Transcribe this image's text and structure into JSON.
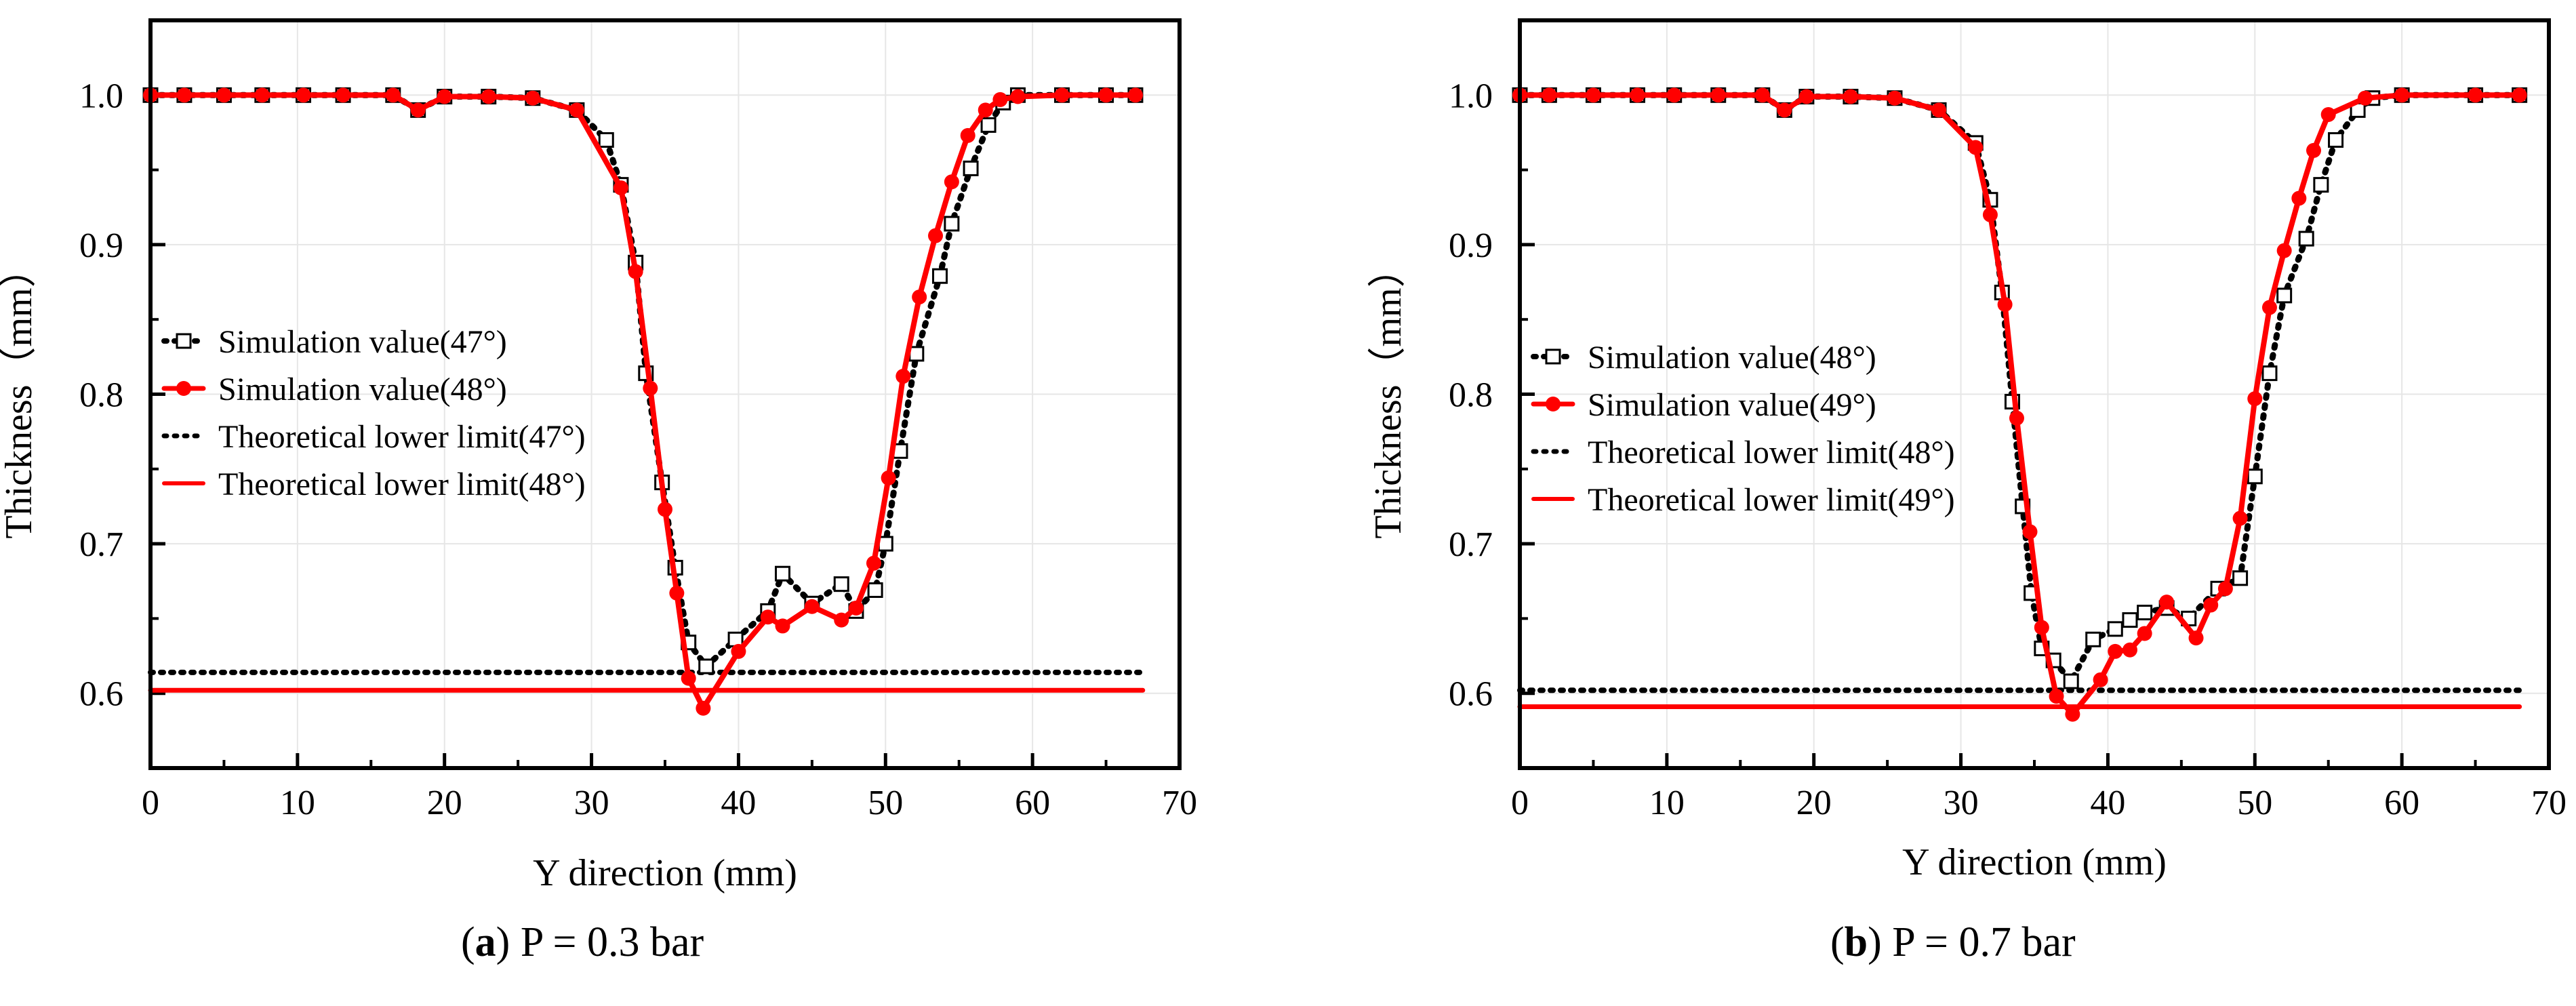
{
  "captions": [
    {
      "letter": "a",
      "paren_open": "(",
      "paren_close": ")",
      "text": " P = 0.3 bar"
    },
    {
      "letter": "b",
      "paren_open": "(",
      "paren_close": ")",
      "text": " P = 0.7 bar"
    }
  ],
  "colors": {
    "sim_black": "#000000",
    "sim_red": "#ff0000",
    "axis": "#000000",
    "grid": "#e6e6e6"
  },
  "chart_data": [
    {
      "type": "line",
      "panel": "a",
      "xlabel": "Y direction (mm)",
      "ylabel": "Thickness（mm）",
      "xlim": [
        0,
        70
      ],
      "ylim": [
        0.55,
        1.05
      ],
      "xticks": [
        0,
        10,
        20,
        30,
        40,
        50,
        60,
        70
      ],
      "yticks": [
        0.6,
        0.7,
        0.8,
        0.9,
        1.0
      ],
      "ytick_labels": [
        "0.6",
        "0.7",
        "0.8",
        "0.9",
        "1.0"
      ],
      "grid": true,
      "legend_position": "middle-left",
      "series": [
        {
          "name": "Simulation value(47°)",
          "style": "black-dotted-square",
          "x": [
            0,
            2.3,
            5,
            7.6,
            10.4,
            13.1,
            16.5,
            18.2,
            20,
            23,
            26,
            29,
            31,
            32,
            33,
            33.7,
            34.8,
            35.7,
            36.6,
            37.8,
            39.8,
            42,
            43,
            45,
            47,
            48,
            49.3,
            50,
            51,
            52.1,
            53.7,
            54.5,
            55.8,
            57,
            58,
            59,
            62,
            65,
            67
          ],
          "y": [
            1.0,
            1.0,
            1.0,
            1.0,
            1.0,
            1.0,
            1.0,
            0.99,
            0.999,
            0.999,
            0.998,
            0.99,
            0.97,
            0.94,
            0.888,
            0.814,
            0.741,
            0.684,
            0.634,
            0.618,
            0.636,
            0.655,
            0.68,
            0.66,
            0.673,
            0.655,
            0.669,
            0.7,
            0.762,
            0.827,
            0.879,
            0.914,
            0.951,
            0.98,
            0.995,
            1.0,
            1.0,
            1.0,
            1.0
          ]
        },
        {
          "name": "Simulation value(48°)",
          "style": "red-solid-circle",
          "x": [
            0,
            2.3,
            5,
            7.6,
            10.4,
            13.1,
            16.5,
            18.2,
            20,
            23,
            26,
            29,
            32,
            33,
            34,
            35,
            35.8,
            36.6,
            37.6,
            40,
            42,
            43,
            45,
            47,
            48,
            49.2,
            50.2,
            51.2,
            52.3,
            53.4,
            54.5,
            55.6,
            56.8,
            57.8,
            59,
            62,
            65,
            67
          ],
          "y": [
            1.0,
            1.0,
            1.0,
            1.0,
            1.0,
            1.0,
            1.0,
            0.99,
            0.999,
            0.999,
            0.998,
            0.99,
            0.938,
            0.882,
            0.804,
            0.723,
            0.667,
            0.61,
            0.59,
            0.628,
            0.651,
            0.645,
            0.658,
            0.649,
            0.657,
            0.687,
            0.744,
            0.812,
            0.865,
            0.906,
            0.942,
            0.973,
            0.99,
            0.997,
            0.999,
            1.0,
            1.0,
            1.0
          ]
        },
        {
          "name": "Theoretical lower limit(47°)",
          "style": "black-dotted",
          "x": [
            0,
            67.5
          ],
          "y": [
            0.614,
            0.614
          ]
        },
        {
          "name": "Theoretical lower limit(48°)",
          "style": "red-solid",
          "x": [
            0,
            67.5
          ],
          "y": [
            0.602,
            0.602
          ]
        }
      ]
    },
    {
      "type": "line",
      "panel": "b",
      "xlabel": "Y direction (mm)",
      "ylabel": "Thickness（mm）",
      "xlim": [
        0,
        70
      ],
      "ylim": [
        0.55,
        1.05
      ],
      "xticks": [
        0,
        10,
        20,
        30,
        40,
        50,
        60,
        70
      ],
      "yticks": [
        0.6,
        0.7,
        0.8,
        0.9,
        1.0
      ],
      "ytick_labels": [
        "0.6",
        "0.7",
        "0.8",
        "0.9",
        "1.0"
      ],
      "grid": true,
      "legend_position": "middle-left",
      "series": [
        {
          "name": "Simulation value(48°)",
          "style": "black-dotted-square",
          "x": [
            0,
            2,
            5,
            8,
            10.5,
            13.5,
            16.5,
            18,
            19.5,
            22.5,
            25.5,
            28.5,
            31,
            32,
            32.8,
            33.5,
            34.2,
            34.8,
            35.5,
            36.3,
            37.5,
            39,
            40.5,
            41.5,
            42.5,
            44,
            45.5,
            47.5,
            49,
            50,
            51,
            52,
            53.5,
            54.5,
            55.5,
            57,
            58,
            60,
            65,
            68
          ],
          "y": [
            1.0,
            1.0,
            1.0,
            1.0,
            1.0,
            1.0,
            1.0,
            0.99,
            0.999,
            0.999,
            0.998,
            0.99,
            0.968,
            0.93,
            0.868,
            0.795,
            0.725,
            0.667,
            0.63,
            0.622,
            0.608,
            0.636,
            0.643,
            0.649,
            0.654,
            0.657,
            0.65,
            0.67,
            0.677,
            0.745,
            0.814,
            0.866,
            0.904,
            0.94,
            0.97,
            0.99,
            0.998,
            1.0,
            1.0,
            1.0
          ]
        },
        {
          "name": "Simulation value(49°)",
          "style": "red-solid-circle",
          "x": [
            0,
            2,
            5,
            8,
            10.5,
            13.5,
            16.5,
            18,
            19.5,
            22.5,
            25.5,
            28.5,
            31,
            32,
            33,
            33.8,
            34.7,
            35.5,
            36.5,
            37.6,
            39.5,
            40.5,
            41.5,
            42.5,
            44,
            46,
            47,
            48,
            49,
            50,
            51,
            52,
            53,
            54,
            55,
            57.5,
            60,
            65,
            68
          ],
          "y": [
            1.0,
            1.0,
            1.0,
            1.0,
            1.0,
            1.0,
            1.0,
            0.99,
            0.999,
            0.999,
            0.998,
            0.99,
            0.965,
            0.92,
            0.86,
            0.784,
            0.708,
            0.644,
            0.598,
            0.586,
            0.609,
            0.628,
            0.629,
            0.64,
            0.661,
            0.637,
            0.659,
            0.67,
            0.717,
            0.797,
            0.858,
            0.896,
            0.931,
            0.963,
            0.987,
            0.998,
            1.0,
            1.0,
            1.0
          ]
        },
        {
          "name": "Theoretical lower limit(48°)",
          "style": "black-dotted",
          "x": [
            0,
            68
          ],
          "y": [
            0.602,
            0.602
          ]
        },
        {
          "name": "Theoretical lower limit(49°)",
          "style": "red-solid",
          "x": [
            0,
            68
          ],
          "y": [
            0.591,
            0.591
          ]
        }
      ]
    }
  ]
}
